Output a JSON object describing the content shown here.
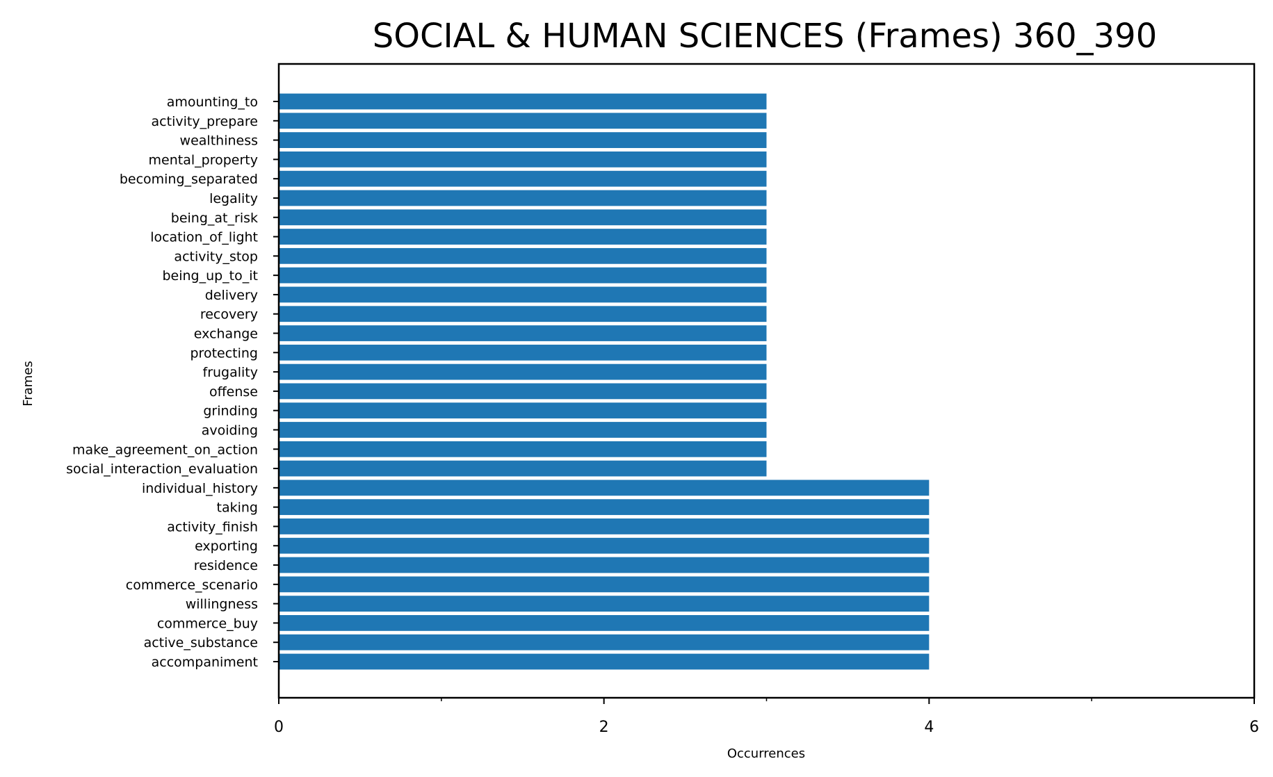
{
  "chart_data": {
    "type": "bar",
    "orientation": "horizontal",
    "title": "SOCIAL & HUMAN SCIENCES (Frames) 360_390",
    "xlabel": "Occurrences",
    "ylabel": "Frames",
    "xlim": [
      0,
      6
    ],
    "xticks": [
      "0",
      "2",
      "4",
      "6"
    ],
    "xminor": [
      1,
      3,
      5
    ],
    "grid": false,
    "bar_color": "#1f77b4",
    "categories": [
      "amounting_to",
      "activity_prepare",
      "wealthiness",
      "mental_property",
      "becoming_separated",
      "legality",
      "being_at_risk",
      "location_of_light",
      "activity_stop",
      "being_up_to_it",
      "delivery",
      "recovery",
      "exchange",
      "protecting",
      "frugality",
      "offense",
      "grinding",
      "avoiding",
      "make_agreement_on_action",
      "social_interaction_evaluation",
      "individual_history",
      "taking",
      "activity_finish",
      "exporting",
      "residence",
      "commerce_scenario",
      "willingness",
      "commerce_buy",
      "active_substance",
      "accompaniment"
    ],
    "values": [
      3,
      3,
      3,
      3,
      3,
      3,
      3,
      3,
      3,
      3,
      3,
      3,
      3,
      3,
      3,
      3,
      3,
      3,
      3,
      3,
      4,
      4,
      4,
      4,
      4,
      4,
      4,
      4,
      4,
      4
    ]
  }
}
